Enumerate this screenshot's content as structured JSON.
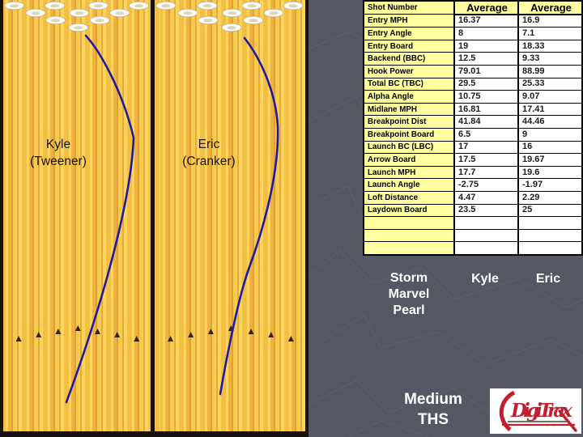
{
  "lanes": [
    {
      "player": "Kyle",
      "style": "(Tweener)"
    },
    {
      "player": "Eric",
      "style": "(Cranker)"
    }
  ],
  "table": {
    "corner_label": "Shot Number",
    "col_headers": [
      "Average",
      "Average"
    ],
    "rows": [
      {
        "label": "Entry MPH",
        "values": [
          "16.37",
          "16.9"
        ]
      },
      {
        "label": "Entry Angle",
        "values": [
          "8",
          "7.1"
        ]
      },
      {
        "label": "Entry Board",
        "values": [
          "19",
          "18.33"
        ]
      },
      {
        "label": "Backend (BBC)",
        "values": [
          "12.5",
          "9.33"
        ]
      },
      {
        "label": "Hook Power",
        "values": [
          "79.01",
          "88.99"
        ]
      },
      {
        "label": "Total BC (TBC)",
        "values": [
          "29.5",
          "25.33"
        ]
      },
      {
        "label": "Alpha Angle",
        "values": [
          "10.75",
          "9.07"
        ]
      },
      {
        "label": "Midlane MPH",
        "values": [
          "16.81",
          "17.41"
        ]
      },
      {
        "label": "Breakpoint Dist",
        "values": [
          "41.84",
          "44.46"
        ]
      },
      {
        "label": "Breakpoint Board",
        "values": [
          "6.5",
          "9"
        ]
      },
      {
        "label": "Launch BC (LBC)",
        "values": [
          "17",
          "16"
        ]
      },
      {
        "label": "Arrow Board",
        "values": [
          "17.5",
          "19.67"
        ]
      },
      {
        "label": "Launch MPH",
        "values": [
          "17.7",
          "19.6"
        ]
      },
      {
        "label": "Launch Angle",
        "values": [
          "-2.75",
          "-1.97"
        ]
      },
      {
        "label": "Loft Distance",
        "values": [
          "4.47",
          "2.29"
        ]
      },
      {
        "label": "Laydown Board",
        "values": [
          "23.5",
          "25"
        ]
      }
    ],
    "empty_rows": 3
  },
  "legend": {
    "ball": "Storm\nMarvel\nPearl",
    "player1": "Kyle",
    "player2": "Eric",
    "condition": "Medium\nTHS"
  },
  "logo": {
    "text": "DigiTrax"
  },
  "colors": {
    "background_slate": "#555862",
    "lane_gold": "#f3c044",
    "lane_dark_edge": "#17120b",
    "ball_path_blue": "#1f1aa6",
    "cell_yellow": "#ffffa0",
    "logo_red": "#c11f2f"
  }
}
